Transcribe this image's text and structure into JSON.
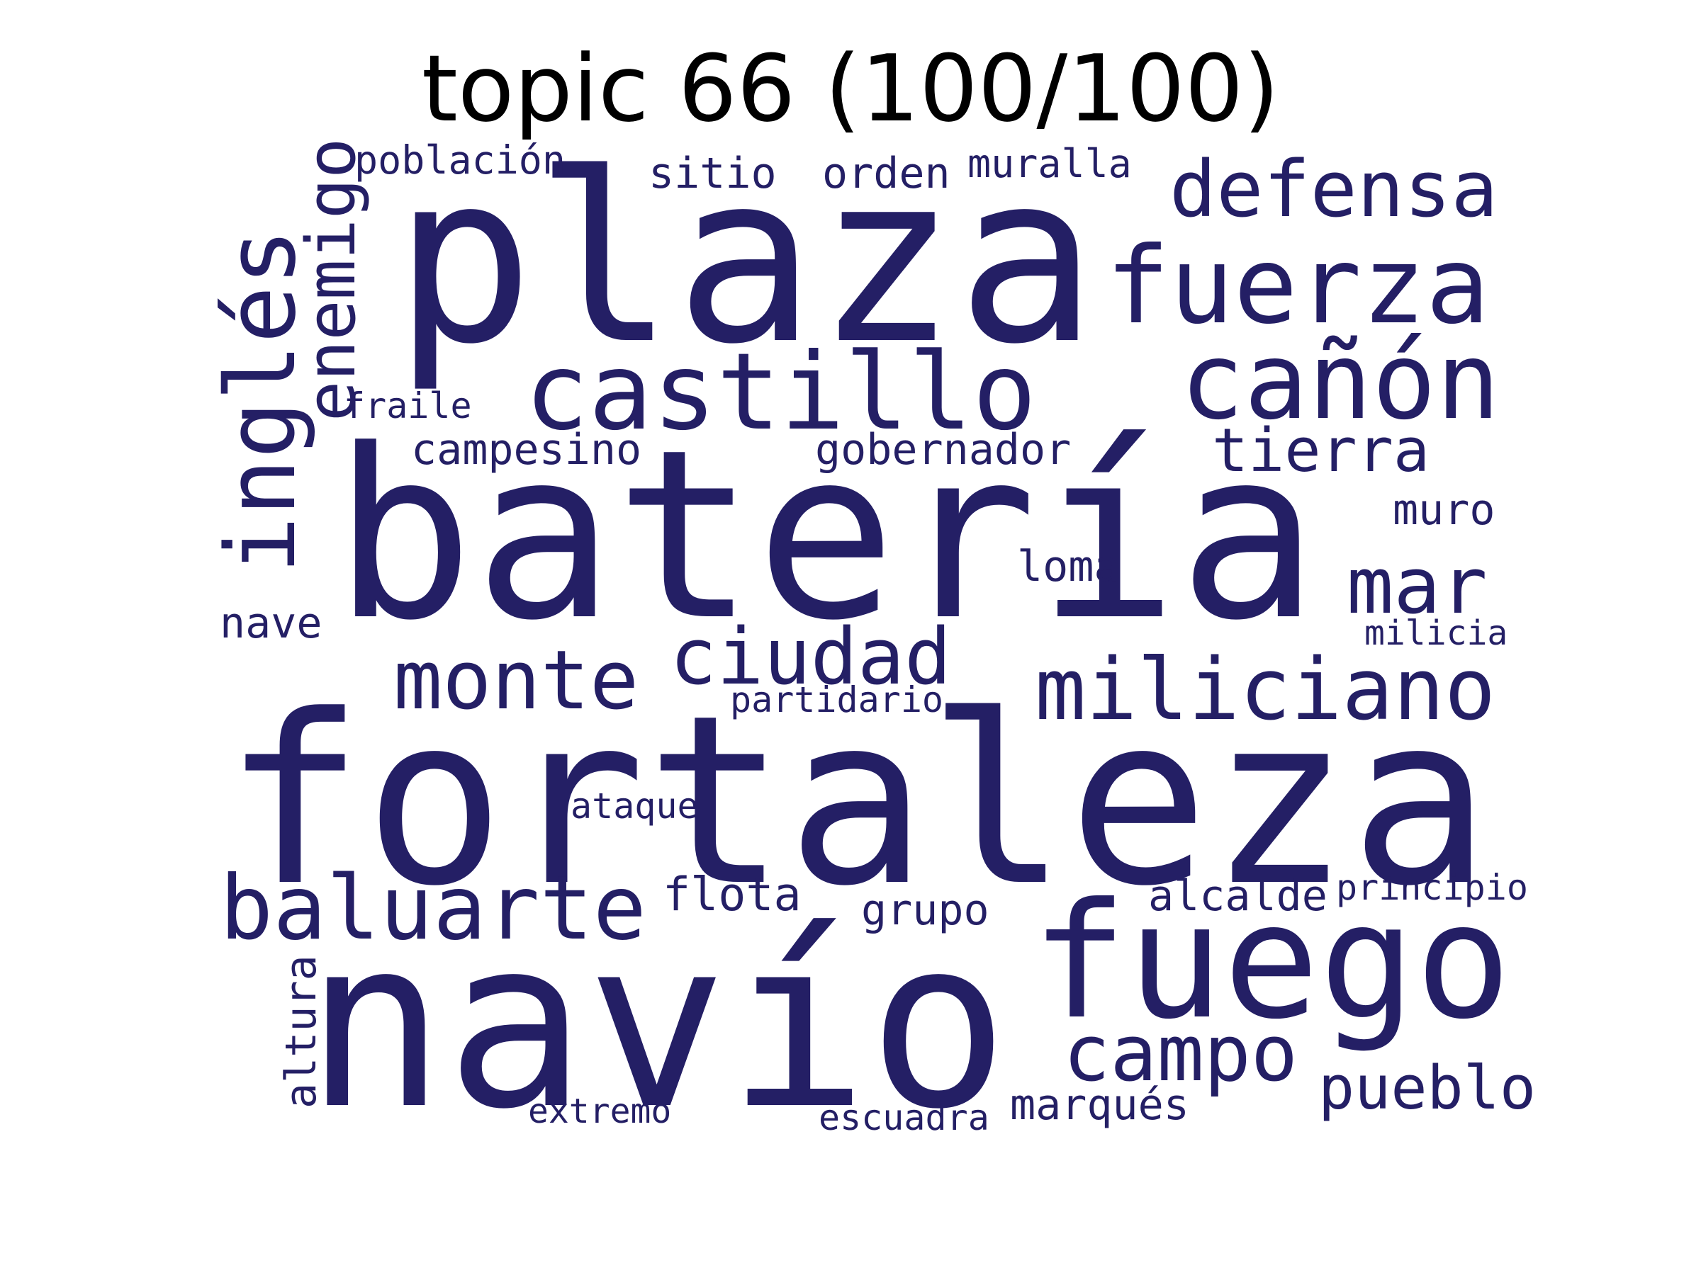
{
  "title": "topic 66 (100/100)",
  "word_color": "#241f65",
  "words": [
    {
      "text": "plaza",
      "orientation": "horizontal"
    },
    {
      "text": "batería",
      "orientation": "horizontal"
    },
    {
      "text": "fortaleza",
      "orientation": "horizontal"
    },
    {
      "text": "navío",
      "orientation": "horizontal"
    },
    {
      "text": "fuego",
      "orientation": "horizontal"
    },
    {
      "text": "fuerza",
      "orientation": "horizontal"
    },
    {
      "text": "castillo",
      "orientation": "horizontal"
    },
    {
      "text": "cañón",
      "orientation": "horizontal"
    },
    {
      "text": "defensa",
      "orientation": "horizontal"
    },
    {
      "text": "inglés",
      "orientation": "vertical"
    },
    {
      "text": "enemigo",
      "orientation": "vertical"
    },
    {
      "text": "miliciano",
      "orientation": "horizontal"
    },
    {
      "text": "baluarte",
      "orientation": "horizontal"
    },
    {
      "text": "monte",
      "orientation": "horizontal"
    },
    {
      "text": "ciudad",
      "orientation": "horizontal"
    },
    {
      "text": "campo",
      "orientation": "horizontal"
    },
    {
      "text": "mar",
      "orientation": "horizontal"
    },
    {
      "text": "tierra",
      "orientation": "horizontal"
    },
    {
      "text": "pueblo",
      "orientation": "horizontal"
    },
    {
      "text": "campesino",
      "orientation": "horizontal"
    },
    {
      "text": "gobernador",
      "orientation": "horizontal"
    },
    {
      "text": "sitio",
      "orientation": "horizontal"
    },
    {
      "text": "orden",
      "orientation": "horizontal"
    },
    {
      "text": "población",
      "orientation": "horizontal"
    },
    {
      "text": "muralla",
      "orientation": "horizontal"
    },
    {
      "text": "flota",
      "orientation": "horizontal"
    },
    {
      "text": "grupo",
      "orientation": "horizontal"
    },
    {
      "text": "alcalde",
      "orientation": "horizontal"
    },
    {
      "text": "marqués",
      "orientation": "horizontal"
    },
    {
      "text": "muro",
      "orientation": "horizontal"
    },
    {
      "text": "loma",
      "orientation": "horizontal"
    },
    {
      "text": "nave",
      "orientation": "horizontal"
    },
    {
      "text": "partidario",
      "orientation": "horizontal"
    },
    {
      "text": "altura",
      "orientation": "vertical"
    },
    {
      "text": "principio",
      "orientation": "horizontal"
    },
    {
      "text": "escuadra",
      "orientation": "horizontal"
    },
    {
      "text": "ataque",
      "orientation": "horizontal"
    },
    {
      "text": "extremo",
      "orientation": "horizontal"
    },
    {
      "text": "milicia",
      "orientation": "horizontal"
    },
    {
      "text": "fraile",
      "orientation": "horizontal"
    }
  ]
}
